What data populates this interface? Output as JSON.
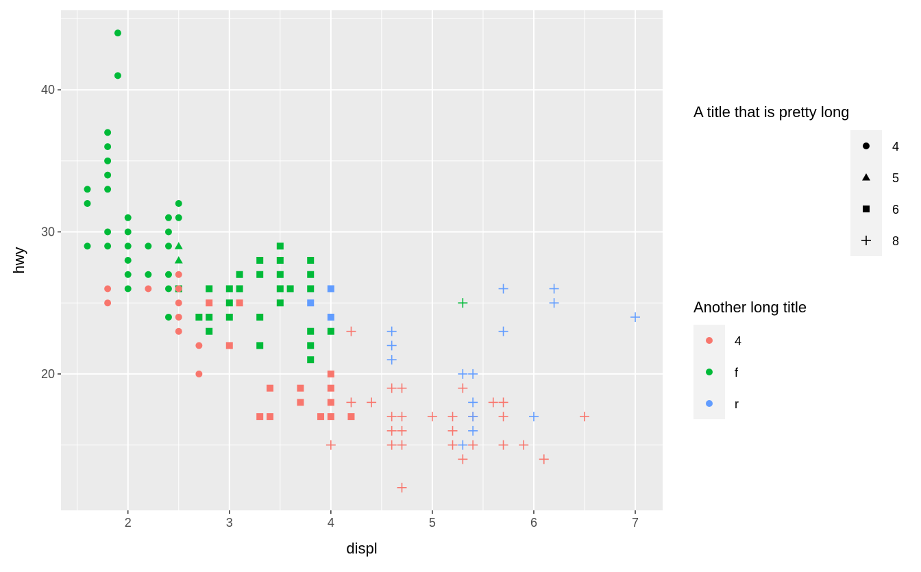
{
  "chart_data": {
    "type": "scatter",
    "title": "",
    "xlabel": "displ",
    "ylabel": "hwy",
    "xlim": [
      1.34,
      7.27
    ],
    "ylim": [
      10.4,
      45.6
    ],
    "x_ticks": [
      2,
      3,
      4,
      5,
      6,
      7
    ],
    "y_ticks": [
      20,
      30,
      40
    ],
    "grid": true,
    "legend_placement": "right",
    "shape_legend": {
      "title": "A title that is pretty long",
      "entries": [
        {
          "label": "4",
          "shape": "circle"
        },
        {
          "label": "5",
          "shape": "triangle"
        },
        {
          "label": "6",
          "shape": "square"
        },
        {
          "label": "8",
          "shape": "plus"
        }
      ]
    },
    "color_legend": {
      "title": "Another long title",
      "entries": [
        {
          "label": "4",
          "color": "#F8766D"
        },
        {
          "label": "f",
          "color": "#00BA38"
        },
        {
          "label": "r",
          "color": "#619CFF"
        }
      ]
    },
    "series": [
      {
        "drv": "f",
        "cyl": "4",
        "points": [
          [
            1.6,
            33
          ],
          [
            1.6,
            32
          ],
          [
            1.6,
            29
          ],
          [
            1.8,
            37
          ],
          [
            1.8,
            36
          ],
          [
            1.8,
            35
          ],
          [
            1.8,
            34
          ],
          [
            1.8,
            33
          ],
          [
            1.8,
            30
          ],
          [
            1.8,
            29
          ],
          [
            1.9,
            44
          ],
          [
            1.9,
            41
          ],
          [
            2.0,
            31
          ],
          [
            2.0,
            30
          ],
          [
            2.0,
            29
          ],
          [
            2.0,
            28
          ],
          [
            2.0,
            27
          ],
          [
            2.0,
            26
          ],
          [
            2.2,
            29
          ],
          [
            2.2,
            27
          ],
          [
            2.4,
            31
          ],
          [
            2.4,
            30
          ],
          [
            2.4,
            29
          ],
          [
            2.4,
            27
          ],
          [
            2.4,
            26
          ],
          [
            2.4,
            24
          ],
          [
            2.5,
            32
          ],
          [
            2.5,
            31
          ]
        ]
      },
      {
        "drv": "f",
        "cyl": "5",
        "points": [
          [
            2.5,
            29
          ],
          [
            2.5,
            28
          ]
        ]
      },
      {
        "drv": "f",
        "cyl": "6",
        "points": [
          [
            2.5,
            26
          ],
          [
            2.7,
            24
          ],
          [
            2.8,
            26
          ],
          [
            2.8,
            24
          ],
          [
            2.8,
            23
          ],
          [
            3.0,
            26
          ],
          [
            3.0,
            25
          ],
          [
            3.0,
            24
          ],
          [
            3.1,
            27
          ],
          [
            3.1,
            26
          ],
          [
            3.3,
            28
          ],
          [
            3.3,
            27
          ],
          [
            3.3,
            24
          ],
          [
            3.3,
            22
          ],
          [
            3.5,
            29
          ],
          [
            3.5,
            28
          ],
          [
            3.5,
            27
          ],
          [
            3.5,
            26
          ],
          [
            3.5,
            25
          ],
          [
            3.6,
            26
          ],
          [
            3.8,
            28
          ],
          [
            3.8,
            27
          ],
          [
            3.8,
            26
          ],
          [
            3.8,
            23
          ],
          [
            3.8,
            22
          ],
          [
            3.8,
            21
          ],
          [
            4.0,
            23
          ]
        ]
      },
      {
        "drv": "f",
        "cyl": "8",
        "points": [
          [
            5.3,
            25
          ]
        ]
      },
      {
        "drv": "4",
        "cyl": "4",
        "points": [
          [
            1.8,
            26
          ],
          [
            1.8,
            25
          ],
          [
            2.2,
            26
          ],
          [
            2.5,
            27
          ],
          [
            2.5,
            26
          ],
          [
            2.5,
            25
          ],
          [
            2.5,
            24
          ],
          [
            2.5,
            23
          ],
          [
            2.7,
            22
          ],
          [
            2.7,
            20
          ]
        ]
      },
      {
        "drv": "4",
        "cyl": "6",
        "points": [
          [
            2.8,
            25
          ],
          [
            3.0,
            22
          ],
          [
            3.1,
            25
          ],
          [
            3.3,
            17
          ],
          [
            3.4,
            19
          ],
          [
            3.4,
            17
          ],
          [
            3.7,
            19
          ],
          [
            3.7,
            18
          ],
          [
            3.9,
            17
          ],
          [
            4.0,
            20
          ],
          [
            4.0,
            19
          ],
          [
            4.0,
            18
          ],
          [
            4.0,
            17
          ],
          [
            4.2,
            17
          ]
        ]
      },
      {
        "drv": "4",
        "cyl": "8",
        "points": [
          [
            4.0,
            15
          ],
          [
            4.2,
            23
          ],
          [
            4.2,
            18
          ],
          [
            4.4,
            18
          ],
          [
            4.6,
            19
          ],
          [
            4.6,
            17
          ],
          [
            4.6,
            16
          ],
          [
            4.6,
            15
          ],
          [
            4.7,
            19
          ],
          [
            4.7,
            17
          ],
          [
            4.7,
            16
          ],
          [
            4.7,
            15
          ],
          [
            4.7,
            12
          ],
          [
            5.0,
            17
          ],
          [
            5.2,
            17
          ],
          [
            5.2,
            16
          ],
          [
            5.2,
            15
          ],
          [
            5.3,
            19
          ],
          [
            5.3,
            14
          ],
          [
            5.4,
            17
          ],
          [
            5.4,
            15
          ],
          [
            5.6,
            18
          ],
          [
            5.7,
            18
          ],
          [
            5.7,
            17
          ],
          [
            5.7,
            15
          ],
          [
            5.9,
            15
          ],
          [
            6.1,
            14
          ],
          [
            6.5,
            17
          ]
        ]
      },
      {
        "drv": "r",
        "cyl": "6",
        "points": [
          [
            3.8,
            25
          ],
          [
            4.0,
            26
          ],
          [
            4.0,
            24
          ]
        ]
      },
      {
        "drv": "r",
        "cyl": "8",
        "points": [
          [
            4.6,
            23
          ],
          [
            4.6,
            22
          ],
          [
            4.6,
            21
          ],
          [
            5.3,
            20
          ],
          [
            5.3,
            15
          ],
          [
            5.4,
            20
          ],
          [
            5.4,
            18
          ],
          [
            5.4,
            17
          ],
          [
            5.4,
            16
          ],
          [
            5.7,
            26
          ],
          [
            5.7,
            23
          ],
          [
            6.0,
            17
          ],
          [
            6.2,
            26
          ],
          [
            6.2,
            25
          ],
          [
            7.0,
            24
          ]
        ]
      }
    ],
    "colors": {
      "4": "#F8766D",
      "f": "#00BA38",
      "r": "#619CFF",
      "panel": "#EBEBEB",
      "grid": "#FFFFFF"
    }
  }
}
